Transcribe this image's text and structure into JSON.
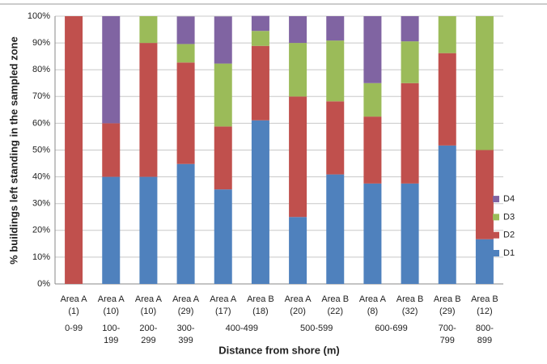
{
  "chart_data": {
    "type": "stacked_bar_100",
    "xlabel": "Distance from shore (m)",
    "ylabel": "% buildings left standing in the sampled zone",
    "categories": [
      [
        "Area A",
        "(1)"
      ],
      [
        "Area A",
        "(10)"
      ],
      [
        "Area A",
        "(10)"
      ],
      [
        "Area A",
        "(29)"
      ],
      [
        "Area A",
        "(17)"
      ],
      [
        "Area B",
        "(18)"
      ],
      [
        "Area A",
        "(20)"
      ],
      [
        "Area B",
        "(22)"
      ],
      [
        "Area A",
        "(8)"
      ],
      [
        "Area B",
        "(32)"
      ],
      [
        "Area B",
        "(29)"
      ],
      [
        "Area B",
        "(12)"
      ]
    ],
    "groups": [
      "0-99",
      "100-199",
      "200-299",
      "300-399",
      "400-499",
      "500-599",
      "600-699",
      "700-799",
      "800-899"
    ],
    "series": [
      {
        "name": "D1",
        "color": "#4f81bd",
        "values": [
          0,
          40,
          40,
          44.8,
          35.3,
          61.1,
          25,
          40.9,
          37.5,
          37.5,
          51.7,
          16.7
        ]
      },
      {
        "name": "D2",
        "color": "#c0504d",
        "values": [
          100,
          20,
          50,
          37.9,
          23.5,
          27.8,
          45,
          27.3,
          25,
          37.5,
          34.5,
          33.3
        ]
      },
      {
        "name": "D3",
        "color": "#9bbb59",
        "values": [
          0,
          0,
          10,
          6.9,
          23.5,
          5.6,
          20,
          22.7,
          12.5,
          15.6,
          13.8,
          50
        ]
      },
      {
        "name": "D4",
        "color": "#8064a2",
        "values": [
          0,
          40,
          0,
          10.3,
          17.6,
          5.6,
          10,
          9.1,
          25,
          9.4,
          0,
          0
        ]
      }
    ],
    "ylim": [
      0,
      100
    ],
    "yticks": [
      {
        "value": 0,
        "label": "0%"
      },
      {
        "value": 10,
        "label": "10%"
      },
      {
        "value": 20,
        "label": "20%"
      },
      {
        "value": 30,
        "label": "30%"
      },
      {
        "value": 40,
        "label": "40%"
      },
      {
        "value": 50,
        "label": "50%"
      },
      {
        "value": 60,
        "label": "60%"
      },
      {
        "value": 70,
        "label": "70%"
      },
      {
        "value": 80,
        "label": "80%"
      },
      {
        "value": 90,
        "label": "90%"
      },
      {
        "value": 100,
        "label": "100%"
      }
    ],
    "grid": true,
    "legend": "right"
  }
}
